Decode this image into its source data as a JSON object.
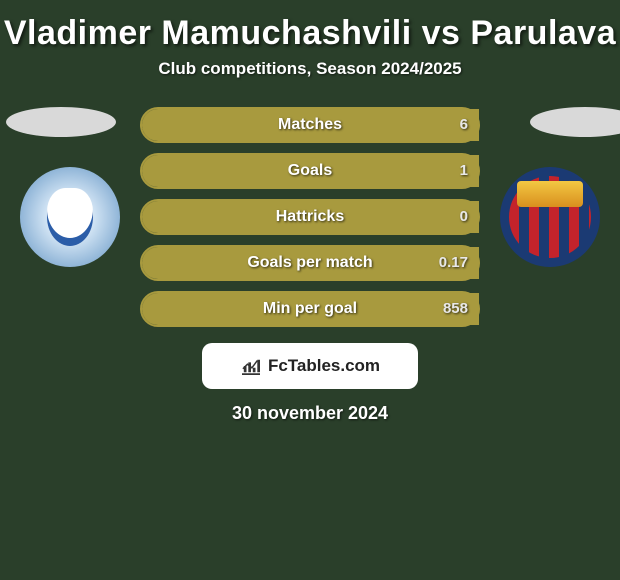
{
  "title": "Vladimer Mamuchashvili vs Parulava",
  "subtitle": "Club competitions, Season 2024/2025",
  "date": "30 november 2024",
  "brand": "FcTables.com",
  "colors": {
    "bg": "#2a3f2a",
    "bar_border": "#a89a3e",
    "bar_fill": "#a89a3e"
  },
  "rows": [
    {
      "label": "Matches",
      "left": "",
      "right": "6",
      "fill_pct": 100
    },
    {
      "label": "Goals",
      "left": "",
      "right": "1",
      "fill_pct": 100
    },
    {
      "label": "Hattricks",
      "left": "",
      "right": "0",
      "fill_pct": 100
    },
    {
      "label": "Goals per match",
      "left": "",
      "right": "0.17",
      "fill_pct": 100
    },
    {
      "label": "Min per goal",
      "left": "",
      "right": "858",
      "fill_pct": 100
    }
  ]
}
